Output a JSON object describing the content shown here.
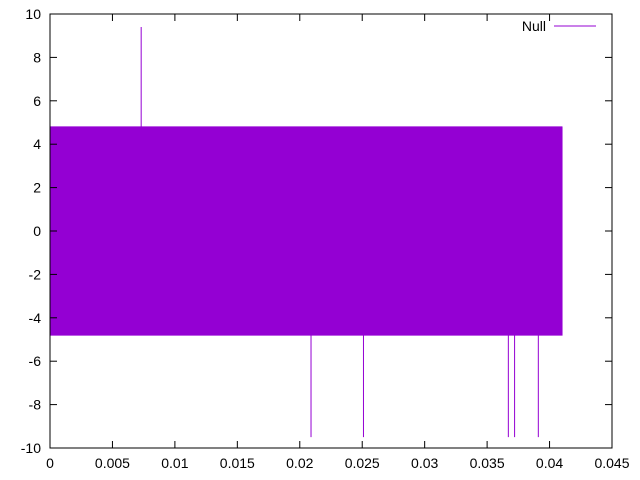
{
  "chart_data": {
    "type": "line",
    "title": "",
    "xlabel": "",
    "ylabel": "",
    "xlim": [
      0,
      0.045
    ],
    "ylim": [
      -10,
      10
    ],
    "x_ticks": [
      0,
      0.005,
      0.01,
      0.015,
      0.02,
      0.025,
      0.03,
      0.035,
      0.04,
      0.045
    ],
    "x_tick_labels": [
      "0",
      "0.005",
      "0.01",
      "0.015",
      "0.02",
      "0.025",
      "0.03",
      "0.035",
      "0.04",
      "0.045"
    ],
    "y_ticks": [
      -10,
      -8,
      -6,
      -4,
      -2,
      0,
      2,
      4,
      6,
      8,
      10
    ],
    "y_tick_labels": [
      "-10",
      "-8",
      "-6",
      "-4",
      "-2",
      "0",
      "2",
      "4",
      "6",
      "8",
      "10"
    ],
    "grid": false,
    "legend": {
      "position": "top-right"
    },
    "series": [
      {
        "name": "Null",
        "color": "#9400d3",
        "description_levels": {
          "high": 4.8,
          "low": -4.8
        },
        "x_start": 0,
        "x_end": 0.041,
        "spikes": [
          {
            "x": 0.0073,
            "y": 9.4
          },
          {
            "x": 0.0209,
            "y": -9.5
          },
          {
            "x": 0.0251,
            "y": -9.5
          },
          {
            "x": 0.0367,
            "y": -9.5
          },
          {
            "x": 0.0372,
            "y": -9.5
          },
          {
            "x": 0.0391,
            "y": -9.5
          }
        ],
        "end_value": 0
      }
    ]
  }
}
